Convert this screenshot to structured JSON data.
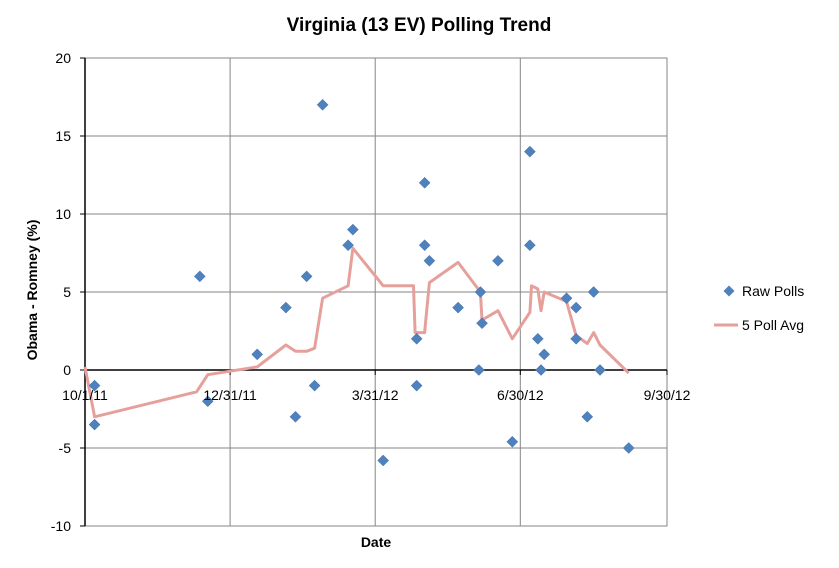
{
  "chart_data": {
    "type": "scatter",
    "title": "Virginia (13 EV) Polling Trend",
    "xlabel": "Date",
    "ylabel": "Obama - Romney (%)",
    "x_ticks": [
      "10/1/11",
      "12/31/11",
      "3/31/12",
      "6/30/12",
      "9/30/12"
    ],
    "xlim": [
      "2011-10-01",
      "2012-09-30"
    ],
    "y_ticks": [
      "-10",
      "-5",
      "0",
      "5",
      "10",
      "15",
      "20"
    ],
    "ylim": [
      -10,
      20
    ],
    "grid": true,
    "legend_position": "right",
    "series": [
      {
        "name": "Raw Polls",
        "type": "scatter",
        "color": "#4f81bd",
        "points": [
          [
            "2011-10-07",
            -1
          ],
          [
            "2011-10-07",
            -3.5
          ],
          [
            "2011-12-12",
            6
          ],
          [
            "2011-12-17",
            -2
          ],
          [
            "2012-01-17",
            1
          ],
          [
            "2012-02-04",
            4
          ],
          [
            "2012-02-10",
            -3
          ],
          [
            "2012-02-17",
            6
          ],
          [
            "2012-02-22",
            -1
          ],
          [
            "2012-02-27",
            17
          ],
          [
            "2012-03-14",
            8
          ],
          [
            "2012-03-17",
            9
          ],
          [
            "2012-04-05",
            -5.8
          ],
          [
            "2012-04-26",
            2
          ],
          [
            "2012-04-26",
            -1
          ],
          [
            "2012-05-01",
            12
          ],
          [
            "2012-05-01",
            8
          ],
          [
            "2012-05-04",
            7
          ],
          [
            "2012-05-22",
            4
          ],
          [
            "2012-06-04",
            0
          ],
          [
            "2012-06-05",
            5
          ],
          [
            "2012-06-06",
            3
          ],
          [
            "2012-06-16",
            7
          ],
          [
            "2012-06-25",
            -4.6
          ],
          [
            "2012-07-06",
            14
          ],
          [
            "2012-07-06",
            8
          ],
          [
            "2012-07-11",
            2
          ],
          [
            "2012-07-13",
            0
          ],
          [
            "2012-07-15",
            1
          ],
          [
            "2012-07-29",
            4.6
          ],
          [
            "2012-08-04",
            4
          ],
          [
            "2012-08-04",
            2
          ],
          [
            "2012-08-11",
            -3
          ],
          [
            "2012-08-15",
            5
          ],
          [
            "2012-08-19",
            0
          ],
          [
            "2012-09-06",
            -5
          ]
        ]
      },
      {
        "name": "5 Poll Avg",
        "type": "line",
        "color": "#e6a09c",
        "points": [
          [
            "2011-10-01",
            0.2
          ],
          [
            "2011-10-07",
            -3
          ],
          [
            "2011-12-10",
            -1.4
          ],
          [
            "2011-12-17",
            -0.3
          ],
          [
            "2012-01-17",
            0.2
          ],
          [
            "2012-02-04",
            1.6
          ],
          [
            "2012-02-10",
            1.2
          ],
          [
            "2012-02-17",
            1.2
          ],
          [
            "2012-02-22",
            1.4
          ],
          [
            "2012-02-27",
            4.6
          ],
          [
            "2012-03-14",
            5.4
          ],
          [
            "2012-03-17",
            7.8
          ],
          [
            "2012-04-05",
            5.4
          ],
          [
            "2012-04-24",
            5.4
          ],
          [
            "2012-04-25",
            2.4
          ],
          [
            "2012-05-01",
            2.4
          ],
          [
            "2012-05-04",
            5.6
          ],
          [
            "2012-05-22",
            6.9
          ],
          [
            "2012-06-05",
            5
          ],
          [
            "2012-06-06",
            3.2
          ],
          [
            "2012-06-16",
            3.8
          ],
          [
            "2012-06-25",
            2
          ],
          [
            "2012-07-06",
            3.7
          ],
          [
            "2012-07-07",
            5.4
          ],
          [
            "2012-07-11",
            5.2
          ],
          [
            "2012-07-13",
            3.8
          ],
          [
            "2012-07-15",
            5
          ],
          [
            "2012-07-29",
            4.4
          ],
          [
            "2012-08-04",
            2.2
          ],
          [
            "2012-08-11",
            1.7
          ],
          [
            "2012-08-15",
            2.4
          ],
          [
            "2012-08-19",
            1.6
          ],
          [
            "2012-09-06",
            -0.2
          ]
        ]
      }
    ]
  }
}
